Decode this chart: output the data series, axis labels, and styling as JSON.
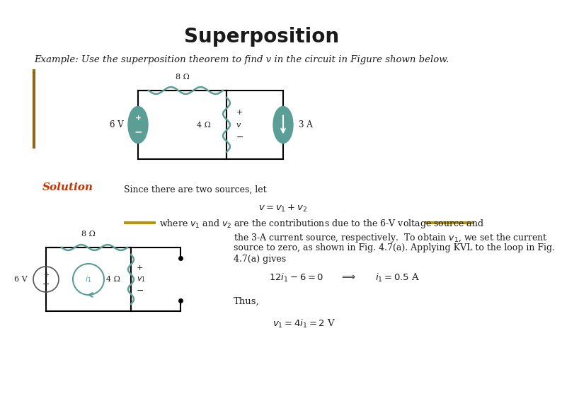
{
  "title": "Superposition",
  "title_fontsize": 20,
  "title_color": "#1a1a1a",
  "title_weight": "bold",
  "bg_color": "#ffffff",
  "example_text": "Example: Use the superposition theorem to find v in the circuit in Figure shown below.",
  "example_fontsize": 9.5,
  "solution_label": "Solution",
  "solution_color": "#cc3300",
  "solution_fontsize": 11,
  "gold_bar_color": "#b8960c",
  "left_bar_color": "#8B6914",
  "teal_color": "#5a9e96",
  "resistor_color": "#5a9e96",
  "text_since": "Since there are two sources, let",
  "text_eq1": "$v = v_1 + v_2$",
  "text_where": "where $v_1$ and $v_2$ are the contributions due to the 6-V voltage source and",
  "text_para1": "the 3-A current source, respectively.  To obtain $v_1$, we set the current",
  "text_para2": "source to zero, as shown in Fig. 4.7(a). Applying KVL to the loop in Fig.",
  "text_para3": "4.7(a) gives",
  "text_kvl": "$12i_1 - 6 = 0$",
  "text_arrow": "$\\Longrightarrow$",
  "text_i1": "$i_1 = 0.5$ A",
  "text_thus": "Thus,",
  "text_v1": "$v_1 = 4i_1 = 2$ V"
}
